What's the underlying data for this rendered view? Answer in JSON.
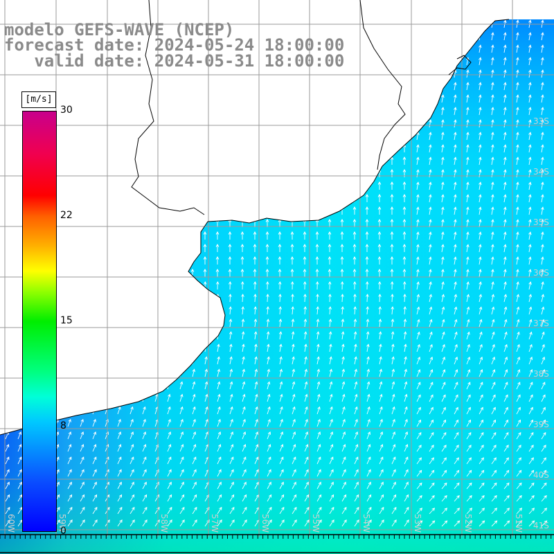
{
  "title": {
    "line1": "modelo GEFS-WAVE (NCEP)",
    "line2": "forecast date: 2024-05-24 18:00:00",
    "line3": "   valid date: 2024-05-31 18:00:00"
  },
  "colorbar": {
    "unit": "[m/s]",
    "max": 30,
    "ticks": [
      {
        "label": "30",
        "value": 30
      },
      {
        "label": "22",
        "value": 22
      },
      {
        "label": "15",
        "value": 15
      },
      {
        "label": "8",
        "value": 8
      },
      {
        "label": "0",
        "value": 0
      }
    ]
  },
  "latitude_labels": [
    "33S",
    "34S",
    "35S",
    "36S",
    "37S",
    "38S",
    "39S",
    "40S",
    "41S"
  ],
  "longitude_labels": [
    "60W",
    "59W",
    "58W",
    "57W",
    "56W",
    "55W",
    "54W",
    "53W",
    "52W",
    "51W"
  ],
  "colors": {
    "ocean_low": "#0a3cff",
    "ocean_mid": "#00d8ff",
    "ocean_high": "#00f0b0",
    "land": "#ffffff",
    "grid": "#9a9a9a",
    "title": "#8a8a8a"
  }
}
